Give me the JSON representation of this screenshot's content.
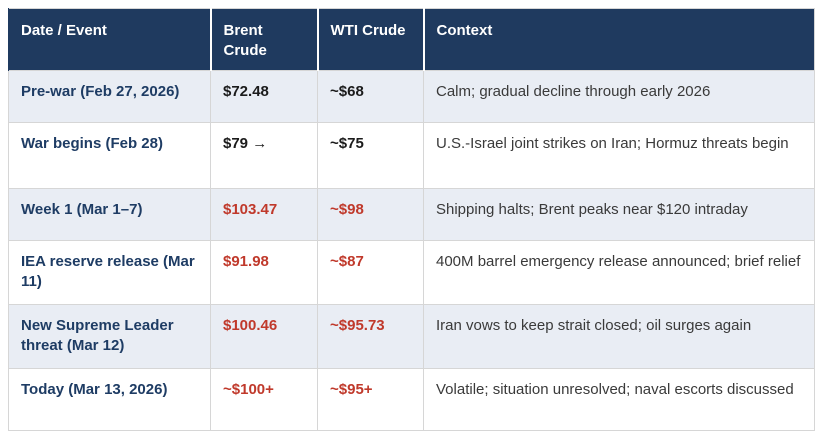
{
  "table": {
    "columns": [
      {
        "label": "Date / Event"
      },
      {
        "label": "Brent Crude"
      },
      {
        "label": "WTI Crude"
      },
      {
        "label": "Context"
      }
    ],
    "rows": [
      {
        "event": "Pre-war (Feb 27, 2026)",
        "brent": "$72.48",
        "wti": "~$68",
        "context": "Calm; gradual decline through early 2026",
        "highlight": false
      },
      {
        "event": "War begins (Feb 28)",
        "brent": "$79 →",
        "wti": "~$75",
        "context": "U.S.-Israel joint strikes on Iran; Hormuz threats begin",
        "highlight": false
      },
      {
        "event": "Week 1 (Mar 1–7)",
        "brent": "$103.47",
        "wti": "~$98",
        "context": "Shipping halts; Brent peaks near $120 intraday",
        "highlight": true
      },
      {
        "event": "IEA reserve release (Mar 11)",
        "brent": "$91.98",
        "wti": "~$87",
        "context": "400M barrel emergency release announced; brief relief",
        "highlight": true
      },
      {
        "event": "New Supreme Leader threat (Mar 12)",
        "brent": "$100.46",
        "wti": "~$95.73",
        "context": "Iran vows to keep strait closed; oil surges again",
        "highlight": true
      },
      {
        "event": "Today (Mar 13, 2026)",
        "brent": "~$100+",
        "wti": "~$95+",
        "context": "Volatile; situation unresolved; naval escorts discussed",
        "highlight": true
      }
    ]
  },
  "colors": {
    "header_bg": "#1f3a5f",
    "row_alt_bg": "#e9edf4",
    "event_text": "#1e3c64",
    "price_up": "#c0392b",
    "price_neutral": "#1b1b1b",
    "border": "#d6d6d6"
  }
}
